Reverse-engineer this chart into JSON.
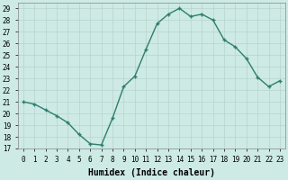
{
  "x": [
    0,
    1,
    2,
    3,
    4,
    5,
    6,
    7,
    8,
    9,
    10,
    11,
    12,
    13,
    14,
    15,
    16,
    17,
    18,
    19,
    20,
    21,
    22,
    23
  ],
  "y": [
    21,
    20.8,
    20.3,
    19.8,
    19.2,
    18.2,
    17.4,
    17.3,
    19.6,
    22.3,
    23.2,
    25.5,
    27.7,
    28.5,
    29.0,
    28.3,
    28.5,
    28.0,
    26.3,
    25.7,
    24.7,
    23.1,
    22.3,
    22.8
  ],
  "line_color": "#2e7d6e",
  "marker": "+",
  "marker_size": 3,
  "linewidth": 1.0,
  "markeredgewidth": 1.0,
  "xlabel": "Humidex (Indice chaleur)",
  "ylim": [
    17,
    29.5
  ],
  "xlim": [
    -0.5,
    23.5
  ],
  "yticks": [
    17,
    18,
    19,
    20,
    21,
    22,
    23,
    24,
    25,
    26,
    27,
    28,
    29
  ],
  "xticks": [
    0,
    1,
    2,
    3,
    4,
    5,
    6,
    7,
    8,
    9,
    10,
    11,
    12,
    13,
    14,
    15,
    16,
    17,
    18,
    19,
    20,
    21,
    22,
    23
  ],
  "xtick_labels": [
    "0",
    "1",
    "2",
    "3",
    "4",
    "5",
    "6",
    "7",
    "8",
    "9",
    "10",
    "11",
    "12",
    "13",
    "14",
    "15",
    "16",
    "17",
    "18",
    "19",
    "20",
    "21",
    "22",
    "23"
  ],
  "bg_color": "#cdeae5",
  "grid_color": "#b8d4d0",
  "xlabel_fontsize": 7,
  "tick_fontsize": 5.5
}
